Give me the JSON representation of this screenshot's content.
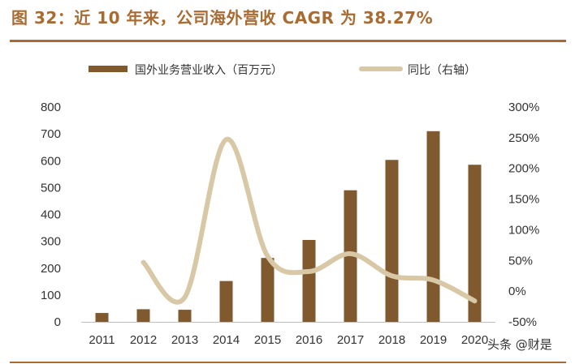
{
  "header": {
    "title": "图 32：近 10 年来，公司海外营收 CAGR 为 38.27%"
  },
  "watermark": "头条 @财是",
  "chart_data": {
    "type": "bar+line",
    "categories": [
      "2011",
      "2012",
      "2013",
      "2014",
      "2015",
      "2016",
      "2017",
      "2018",
      "2019",
      "2020"
    ],
    "series": [
      {
        "name": "国外业务营业收入（百万元）",
        "type": "bar",
        "axis": "left",
        "color": "#80592f",
        "values": [
          33,
          47,
          45,
          152,
          238,
          305,
          490,
          603,
          710,
          585
        ]
      },
      {
        "name": "同比（右轴）",
        "type": "line",
        "axis": "right",
        "color": "#d8c8a6",
        "values": [
          null,
          47,
          -10,
          247,
          57,
          32,
          61,
          25,
          18,
          -16
        ]
      }
    ],
    "y_left": {
      "range": [
        0,
        800
      ],
      "ticks": [
        "0",
        "100",
        "200",
        "300",
        "400",
        "500",
        "600",
        "700",
        "800"
      ]
    },
    "y_right": {
      "range": [
        -50,
        300
      ],
      "ticks": [
        "-50%",
        "0%",
        "50%",
        "100%",
        "150%",
        "200%",
        "250%",
        "300%"
      ]
    },
    "legend_position": "top",
    "grid": false
  }
}
